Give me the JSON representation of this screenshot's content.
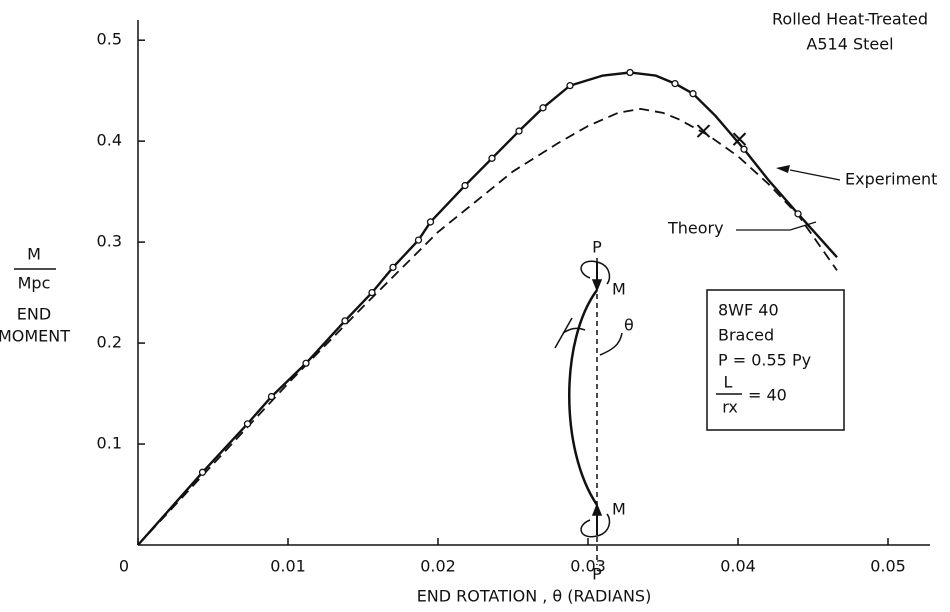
{
  "chart_data": {
    "type": "line",
    "xlabel": "END ROTATION , θ  (RADIANS)",
    "ylabel_num": "M",
    "ylabel_den": "Mpc",
    "ylabel_text": [
      "END",
      "MOMENT"
    ],
    "annotations": [
      "Rolled Heat-Treated",
      "A514 Steel"
    ],
    "box": {
      "lines": [
        "8WF 40",
        "Braced",
        "P = 0.55 Py"
      ],
      "frac_num": "L",
      "frac_den": "rx",
      "frac_rest": "= 40"
    },
    "diagram_labels": {
      "p": "P",
      "m": "M",
      "theta": "θ"
    },
    "xlim": [
      0,
      0.0528
    ],
    "ylim": [
      0,
      0.52
    ],
    "xticks": [
      0,
      0.01,
      0.02,
      0.03,
      0.04,
      0.05
    ],
    "yticks": [
      0.1,
      0.2,
      0.3,
      0.4,
      0.5
    ],
    "series": [
      {
        "name": "Experiment",
        "color": "#111111",
        "style": "solid",
        "x": [
          0,
          0.0043,
          0.0073,
          0.0089,
          0.0112,
          0.0138,
          0.0156,
          0.017,
          0.0187,
          0.0195,
          0.0218,
          0.0236,
          0.0254,
          0.027,
          0.0288,
          0.031,
          0.0328,
          0.0345,
          0.0358,
          0.037,
          0.0385,
          0.0404,
          0.042,
          0.044,
          0.0466
        ],
        "values": [
          0,
          0.072,
          0.12,
          0.147,
          0.18,
          0.222,
          0.25,
          0.275,
          0.302,
          0.32,
          0.356,
          0.383,
          0.41,
          0.433,
          0.455,
          0.465,
          0.468,
          0.465,
          0.457,
          0.447,
          0.425,
          0.392,
          0.362,
          0.328,
          0.285
        ]
      },
      {
        "name": "Theory",
        "color": "#111111",
        "style": "dashed",
        "x": [
          0,
          0.005,
          0.01,
          0.015,
          0.02,
          0.025,
          0.028,
          0.03,
          0.032,
          0.0335,
          0.035,
          0.036,
          0.038,
          0.04,
          0.042,
          0.044,
          0.0466
        ],
        "values": [
          0,
          0.08,
          0.16,
          0.236,
          0.31,
          0.37,
          0.398,
          0.415,
          0.428,
          0.432,
          0.428,
          0.422,
          0.406,
          0.385,
          0.358,
          0.327,
          0.272
        ]
      }
    ],
    "experiment_points": {
      "x": [
        0.0043,
        0.0073,
        0.0089,
        0.0112,
        0.0138,
        0.0156,
        0.017,
        0.0187,
        0.0195,
        0.0218,
        0.0236,
        0.0254,
        0.027,
        0.0288,
        0.0328,
        0.0358,
        0.037,
        0.0404,
        0.044
      ],
      "values": [
        0.072,
        0.12,
        0.147,
        0.18,
        0.222,
        0.25,
        0.275,
        0.302,
        0.32,
        0.356,
        0.383,
        0.41,
        0.433,
        0.455,
        0.468,
        0.457,
        0.447,
        0.392,
        0.328
      ]
    },
    "x_marks": {
      "x": [
        0.0377,
        0.0401
      ],
      "values": [
        0.41,
        0.402
      ]
    }
  }
}
